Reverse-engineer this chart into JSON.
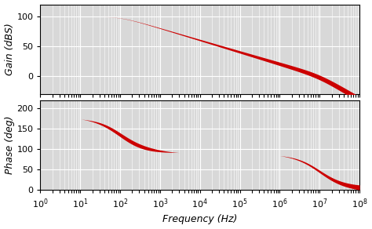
{
  "freq_min": 1,
  "freq_max": 100000000.0,
  "gain_dc_dB": 100,
  "pole1_hz": 100,
  "pole2_hz": 10000000.0,
  "gain_ylim": [
    -30,
    120
  ],
  "gain_yticks": [
    0,
    50,
    100
  ],
  "phase_ylim": [
    0,
    220
  ],
  "phase_yticks": [
    0,
    50,
    100,
    150,
    200
  ],
  "xlabel": "Frequency (Hz)",
  "ylabel_gain": "Gain (dBS)",
  "ylabel_phase": "Phase (deg)",
  "line_color": "#cc0000",
  "bg_color": "#d8d8d8",
  "grid_color": "#ffffff",
  "fig_bg": "#ffffff",
  "tick_fontsize": 8,
  "label_fontsize": 9
}
